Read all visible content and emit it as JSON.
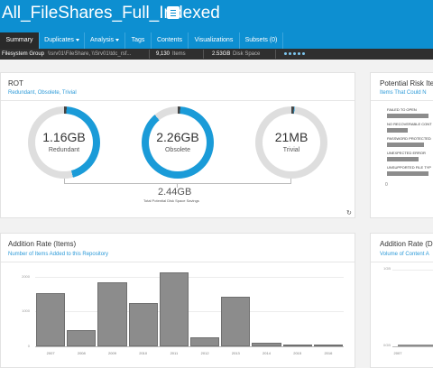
{
  "colors": {
    "brand": "#0d8fd1",
    "ring_track": "#dedede",
    "ring_fill": "#1a9bd8",
    "ring_marker": "#444444",
    "bar": "#8c8c8c"
  },
  "header": {
    "title": "All_FileShares_Full_Indexed",
    "menu_icon": "hamburger-menu-icon"
  },
  "tabs": [
    {
      "label": "Summary",
      "active": true,
      "dropdown": false
    },
    {
      "label": "Duplicates",
      "active": false,
      "dropdown": true
    },
    {
      "label": "Analysis",
      "active": false,
      "dropdown": true
    },
    {
      "label": "Tags",
      "active": false,
      "dropdown": false
    },
    {
      "label": "Contents",
      "active": false,
      "dropdown": false
    },
    {
      "label": "Visualizations",
      "active": false,
      "dropdown": false
    },
    {
      "label": "Subsets (0)",
      "active": false,
      "dropdown": false
    }
  ],
  "infobar": {
    "source_type": "Filesystem Group",
    "source_path": "\\\\srv01\\FileShare, \\\\Srv01\\tdc_rsf...",
    "items_value": "9,130",
    "items_unit": "Items",
    "space_value": "2.53GB",
    "space_unit": "Disk Space",
    "progress_dots": 5
  },
  "rot": {
    "title": "ROT",
    "subtitle": "Redundant, Obsolete, Trivial",
    "donuts": [
      {
        "value": "1.16GB",
        "label": "Redundant",
        "fraction": 0.46
      },
      {
        "value": "2.26GB",
        "label": "Obsolete",
        "fraction": 0.89
      },
      {
        "value": "21MB",
        "label": "Trivial",
        "fraction": 0.01
      }
    ],
    "total_value": "2.44GB",
    "total_label": "Total Potential Disk Space Savings",
    "refresh_icon": "refresh-icon"
  },
  "risk": {
    "title": "Potential Risk Ite",
    "subtitle": "Items That Could N",
    "items": [
      {
        "label": "FAILED TO OPEN",
        "value": 0.8
      },
      {
        "label": "NO RECOVERABLE CONT",
        "value": 0.4
      },
      {
        "label": "PASSWORD PROTECTED",
        "value": 0.7
      },
      {
        "label": "UNEXPECTED ERROR",
        "value": 0.6
      },
      {
        "label": "UNSUPPORTED FILE TYP",
        "value": 0.8
      }
    ],
    "axis_label": "0"
  },
  "addition_items": {
    "title": "Addition Rate (Items)",
    "subtitle": "Number of Items Added to this Repository",
    "chart_data": {
      "type": "bar",
      "categories": [
        "2007",
        "2008",
        "2009",
        "2010",
        "2011",
        "2012",
        "2013",
        "2014",
        "2015",
        "2016"
      ],
      "values": [
        1540,
        460,
        1840,
        1240,
        2130,
        250,
        1430,
        100,
        40,
        40
      ],
      "yticks": [
        "2000",
        "1000",
        "0"
      ],
      "ylim": [
        0,
        2200
      ]
    }
  },
  "addition_volume": {
    "title": "Addition Rate (D",
    "subtitle": "Volume of Content A",
    "yticks": [
      "1GB",
      "0GB"
    ],
    "xtick": "2007"
  }
}
